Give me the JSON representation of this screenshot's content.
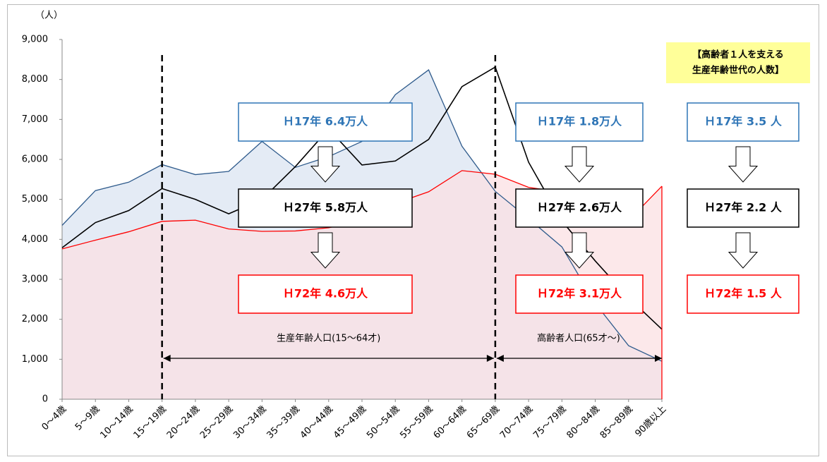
{
  "chart_data": {
    "type": "line",
    "y_label": "（人）",
    "categories": [
      "0～4歳",
      "5～9歳",
      "10～14歳",
      "15～19歳",
      "20～24歳",
      "25～29歳",
      "30～34歳",
      "35～39歳",
      "40～44歳",
      "45～49歳",
      "50～54歳",
      "55～59歳",
      "60～64歳",
      "65～69歳",
      "70～74歳",
      "75～79歳",
      "80～84歳",
      "85～89歳",
      "90歳以上"
    ],
    "series": [
      {
        "color": "#2f5b8c",
        "fill": "#dbe4f1",
        "values": [
          4350,
          5220,
          5430,
          5870,
          5620,
          5700,
          6450,
          5800,
          6070,
          6450,
          7620,
          8240,
          6330,
          5200,
          4520,
          3810,
          2400,
          1340,
          950
        ]
      },
      {
        "color": "#000000",
        "values": [
          3790,
          4420,
          4720,
          5270,
          5000,
          4640,
          5000,
          5820,
          6760,
          5860,
          5960,
          6500,
          7820,
          8310,
          5930,
          4460,
          3460,
          2540,
          1750
        ]
      },
      {
        "color": "#ff0000",
        "fill": "#fbe0e3",
        "values": [
          3760,
          3980,
          4190,
          4450,
          4480,
          4260,
          4200,
          4210,
          4290,
          4460,
          4900,
          5190,
          5720,
          5630,
          5300,
          5180,
          5060,
          4470,
          5330
        ]
      }
    ],
    "ylim": [
      0,
      9000
    ],
    "yticks": [
      0,
      {
        "value": 1000,
        "label": "1,000"
      },
      {
        "value": 2000,
        "label": "2,000"
      },
      {
        "value": 3000,
        "label": "3,000"
      },
      {
        "value": 4000,
        "label": "4,000"
      },
      {
        "value": 5000,
        "label": "5,000"
      },
      {
        "value": 6000,
        "label": "6,000"
      },
      {
        "value": 7000,
        "label": "7,000"
      },
      {
        "value": 8000,
        "label": "8,000"
      },
      {
        "value": 9000,
        "label": "9,000"
      }
    ],
    "ranges": [
      "生産年齢人口(15～64才)",
      "高齢者人口(65才～)"
    ],
    "boxes": [
      "Ｈ17年 6.4万人",
      "Ｈ27年 5.8万人",
      "Ｈ72年 4.6万人",
      "Ｈ17年 1.8万人",
      "Ｈ27年 2.6万人",
      "Ｈ72年 3.1万人",
      "Ｈ17年 3.5 人",
      "Ｈ27年 2.2 人",
      "Ｈ72年 1.5 人"
    ],
    "summary": [
      "【高齢者１人を支える",
      "生産年齢世代の人数】"
    ]
  }
}
